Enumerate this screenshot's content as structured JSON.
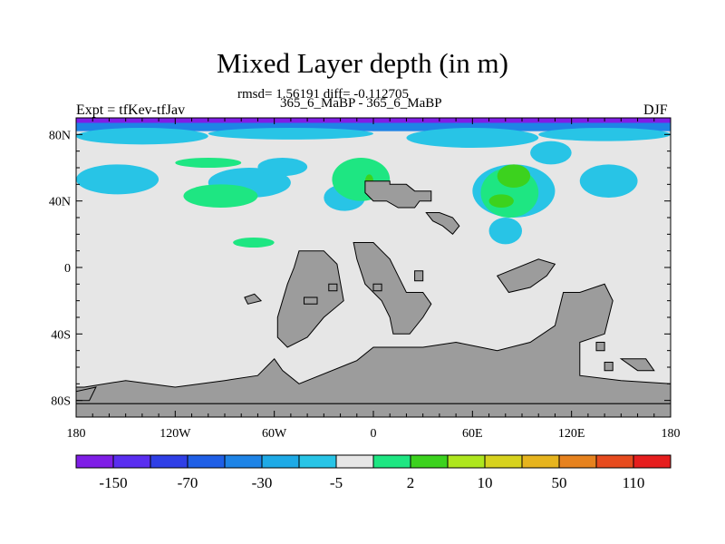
{
  "title": "Mixed Layer depth (in m)",
  "stats_text": "rmsd= 1.56191 diff= -0.112705",
  "subtitle": "365_6_MaBP - 365_6_MaBP",
  "left_label": "Expt = tfKev-tfJav",
  "right_label": "DJF",
  "map_extent": {
    "lon": [
      -180,
      180
    ],
    "lat": [
      -90,
      90
    ]
  },
  "x_ticks": [
    {
      "value": -180,
      "label": "180"
    },
    {
      "value": -120,
      "label": "120W"
    },
    {
      "value": -60,
      "label": "60W"
    },
    {
      "value": 0,
      "label": "0"
    },
    {
      "value": 60,
      "label": "60E"
    },
    {
      "value": 120,
      "label": "120E"
    },
    {
      "value": 180,
      "label": "180"
    }
  ],
  "y_ticks": [
    {
      "value": 80,
      "label": "80N"
    },
    {
      "value": 40,
      "label": "40N"
    },
    {
      "value": 0,
      "label": "0"
    },
    {
      "value": -40,
      "label": "40S"
    },
    {
      "value": -80,
      "label": "80S"
    }
  ],
  "colors": {
    "ocean_background": "#e6e6e6",
    "land": "#9c9c9c"
  },
  "colorbar": {
    "swatches": [
      "#7f1ee6",
      "#5a2ef0",
      "#2f3fe6",
      "#1f5fe6",
      "#1e84e6",
      "#1eaae6",
      "#28c4e6",
      "#e6e6e6",
      "#1ee682",
      "#3cd21e",
      "#aee61e",
      "#d7d21e",
      "#e6b41e",
      "#e6821e",
      "#e64b1e",
      "#e61e1e"
    ],
    "labels": [
      "-150",
      "-70",
      "-30",
      "-5",
      "2",
      "10",
      "50",
      "110"
    ]
  },
  "chart_data": {
    "type": "heatmap",
    "title": "Mixed Layer depth (in m)",
    "subtitle": "365_6_MaBP - 365_6_MaBP",
    "annotation": "rmsd= 1.56191 diff= -0.112705",
    "left_label": "Expt = tfKev-tfJav",
    "season": "DJF",
    "x_axis": {
      "range": [
        -180,
        180
      ],
      "ticks": [
        "180",
        "120W",
        "60W",
        "0",
        "60E",
        "120E",
        "180"
      ]
    },
    "y_axis": {
      "range": [
        -90,
        90
      ],
      "ticks": [
        "80N",
        "40N",
        "0",
        "40S",
        "80S"
      ]
    },
    "levels": [
      -150,
      -70,
      -30,
      -5,
      2,
      10,
      50,
      110
    ],
    "fill": [
      {
        "level": -150,
        "lon": [
          -180,
          180
        ],
        "lat": [
          86,
          90
        ]
      },
      {
        "level": -30,
        "lon": [
          -180,
          180
        ],
        "lat": [
          82,
          87
        ]
      },
      {
        "level": -5,
        "lon": [
          -180,
          -100
        ],
        "lat": [
          74,
          84
        ]
      },
      {
        "level": -5,
        "lon": [
          -100,
          0
        ],
        "lat": [
          77,
          84
        ]
      },
      {
        "level": -5,
        "lon": [
          20,
          100
        ],
        "lat": [
          72,
          84
        ]
      },
      {
        "level": -5,
        "lon": [
          100,
          180
        ],
        "lat": [
          76,
          84
        ]
      },
      {
        "level": -5,
        "lon": [
          -180,
          -130
        ],
        "lat": [
          44,
          62
        ]
      },
      {
        "level": -5,
        "lon": [
          -100,
          -50
        ],
        "lat": [
          42,
          60
        ]
      },
      {
        "level": -5,
        "lon": [
          -70,
          -40
        ],
        "lat": [
          55,
          66
        ]
      },
      {
        "level": -5,
        "lon": [
          -30,
          -5
        ],
        "lat": [
          34,
          50
        ]
      },
      {
        "level": -5,
        "lon": [
          60,
          110
        ],
        "lat": [
          30,
          62
        ]
      },
      {
        "level": -5,
        "lon": [
          95,
          120
        ],
        "lat": [
          62,
          76
        ]
      },
      {
        "level": -5,
        "lon": [
          125,
          160
        ],
        "lat": [
          42,
          62
        ]
      },
      {
        "level": -5,
        "lon": [
          70,
          90
        ],
        "lat": [
          14,
          30
        ]
      },
      {
        "level": 2,
        "lon": [
          -115,
          -70
        ],
        "lat": [
          36,
          50
        ]
      },
      {
        "level": 2,
        "lon": [
          -85,
          -60
        ],
        "lat": [
          12,
          18
        ]
      },
      {
        "level": 2,
        "lon": [
          -120,
          -80
        ],
        "lat": [
          60,
          66
        ]
      },
      {
        "level": 2,
        "lon": [
          -25,
          10
        ],
        "lat": [
          40,
          66
        ]
      },
      {
        "level": 2,
        "lon": [
          65,
          100
        ],
        "lat": [
          30,
          60
        ]
      },
      {
        "level": 10,
        "lon": [
          -5,
          0
        ],
        "lat": [
          48,
          56
        ]
      },
      {
        "level": 10,
        "lon": [
          75,
          95
        ],
        "lat": [
          48,
          62
        ]
      },
      {
        "level": 10,
        "lon": [
          70,
          85
        ],
        "lat": [
          36,
          44
        ]
      }
    ],
    "land_fill": "#9c9c9c",
    "ocean_fill": "#e6e6e6"
  }
}
